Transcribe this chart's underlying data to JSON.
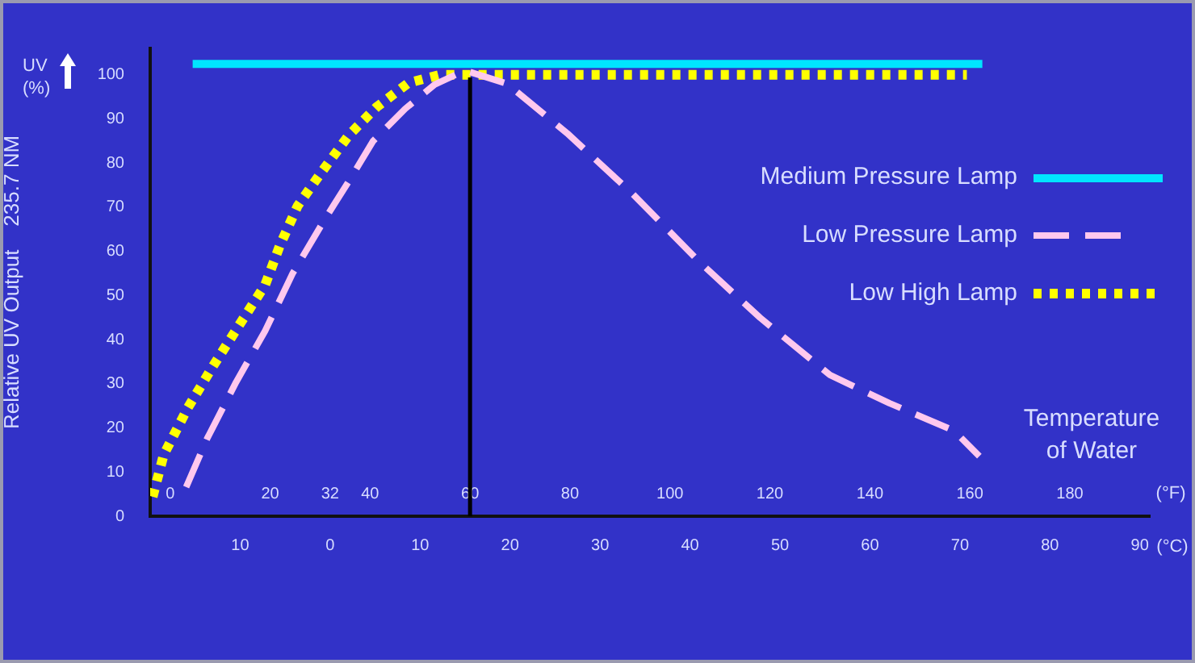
{
  "chart_data": {
    "type": "line",
    "ylabel": "Relative UV Output    235.7 NM",
    "xlabel": "(°F)",
    "x2label": "(°C)",
    "annotations": [
      "UV (%)",
      "Temperature of Water"
    ],
    "xlim": [
      -4,
      196
    ],
    "xticks": [
      0,
      20,
      32,
      40,
      60,
      80,
      100,
      120,
      140,
      160,
      180
    ],
    "x2lim": [
      -20,
      91.1
    ],
    "x2ticks": [
      {
        "value": -10,
        "label": "10"
      },
      0,
      10,
      20,
      30,
      40,
      50,
      60,
      70,
      80,
      90
    ],
    "ylim": [
      0,
      106
    ],
    "yticks": [
      0,
      10,
      20,
      30,
      40,
      50,
      60,
      70,
      80,
      90,
      100
    ],
    "grid": false,
    "legend": "right",
    "marker": "none",
    "ref_lines": [
      {
        "axis": "x",
        "value": 60,
        "color": "#000000"
      }
    ],
    "series": [
      {
        "name": "Medium Pressure Lamp",
        "color": "#00e5ff",
        "line_style": "solid",
        "x": [
          4.5,
          162.5
        ],
        "values": [
          102.5,
          102.5
        ]
      },
      {
        "name": "Low Pressure Lamp",
        "color": "#ffc8ee",
        "line_style": "dashed",
        "x": [
          3.2,
          7.4,
          13.2,
          19,
          24.5,
          31,
          35.8,
          40.6,
          47,
          52.9,
          59,
          67.4,
          79.4,
          92.3,
          106,
          118,
          132,
          143.9,
          156.8,
          161.9
        ],
        "values": [
          6.6,
          17.6,
          30.4,
          42,
          55,
          67.4,
          76,
          85,
          92.3,
          97.8,
          101,
          98,
          86.8,
          73.3,
          57.5,
          45,
          32,
          25.6,
          19.4,
          13.6
        ]
      },
      {
        "name": "Low High Lamp",
        "color": "#ffff00",
        "line_style": "dotted",
        "x": [
          -3.5,
          -1.3,
          3.5,
          8.4,
          14.2,
          19,
          21.9,
          25.5,
          30.3,
          35.8,
          41.3,
          47.7,
          54,
          159.4
        ],
        "values": [
          4.4,
          13.9,
          24.5,
          33.7,
          44,
          52.4,
          61.2,
          70.3,
          78,
          86.4,
          92.7,
          98.2,
          100,
          100
        ]
      }
    ]
  }
}
